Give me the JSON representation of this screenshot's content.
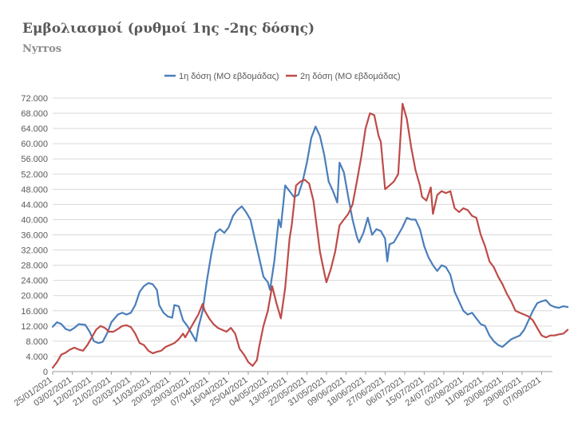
{
  "title": "Εμβολιασμοί (ρυθμοί 1ης -2ης δόσης)",
  "subtitle": "Nyrros",
  "chart_data": {
    "type": "line",
    "title": "Εμβολιασμοί (ρυθμοί 1ης -2ης δόσης)",
    "subtitle": "Nyrros",
    "xlabel": "",
    "ylabel": "",
    "ylim": [
      0,
      72000
    ],
    "yticks": [
      0,
      4000,
      8000,
      12000,
      16000,
      20000,
      24000,
      28000,
      32000,
      36000,
      40000,
      44000,
      48000,
      52000,
      56000,
      60000,
      64000,
      68000,
      72000
    ],
    "ytick_labels": [
      "0",
      "4.000",
      "8.000",
      "12.000",
      "16.000",
      "20.000",
      "24.000",
      "28.000",
      "32.000",
      "36.000",
      "40.000",
      "44.000",
      "48.000",
      "52.000",
      "56.000",
      "60.000",
      "64.000",
      "68.000",
      "72.000"
    ],
    "grid": true,
    "legend_position": "top",
    "x_start": "2021-01-25",
    "x_end": "2021-09-12",
    "x_tick_labels": [
      "25/01/2021",
      "03/02/2021",
      "12/02/2021",
      "21/02/2021",
      "02/03/2021",
      "11/03/2021",
      "20/03/2021",
      "29/03/2021",
      "07/04/2021",
      "16/04/2021",
      "25/04/2021",
      "04/05/2021",
      "13/05/2021",
      "22/05/2021",
      "31/05/2021",
      "09/06/2021",
      "18/06/2021",
      "27/06/2021",
      "06/07/2021",
      "15/07/2021",
      "24/07/2021",
      "02/08/2021",
      "11/08/2021",
      "20/08/2021",
      "29/08/2021",
      "07/09/2021"
    ],
    "series": [
      {
        "name": "1η δόση (ΜΟ εβδομάδας)",
        "color": "#4a7ebb",
        "points": [
          [
            "2021-01-25",
            11800
          ],
          [
            "2021-01-27",
            13000
          ],
          [
            "2021-01-29",
            12500
          ],
          [
            "2021-01-31",
            11200
          ],
          [
            "2021-02-02",
            10800
          ],
          [
            "2021-02-04",
            11500
          ],
          [
            "2021-02-06",
            12500
          ],
          [
            "2021-02-09",
            12300
          ],
          [
            "2021-02-11",
            10500
          ],
          [
            "2021-02-13",
            8000
          ],
          [
            "2021-02-15",
            7500
          ],
          [
            "2021-02-17",
            7800
          ],
          [
            "2021-02-19",
            10000
          ],
          [
            "2021-02-21",
            13000
          ],
          [
            "2021-02-24",
            15000
          ],
          [
            "2021-02-26",
            15500
          ],
          [
            "2021-02-28",
            15000
          ],
          [
            "2021-03-02",
            15500
          ],
          [
            "2021-03-04",
            17500
          ],
          [
            "2021-03-06",
            21000
          ],
          [
            "2021-03-08",
            22500
          ],
          [
            "2021-03-10",
            23300
          ],
          [
            "2021-03-12",
            23000
          ],
          [
            "2021-03-14",
            21500
          ],
          [
            "2021-03-15",
            17500
          ],
          [
            "2021-03-17",
            15500
          ],
          [
            "2021-03-19",
            14500
          ],
          [
            "2021-03-21",
            14200
          ],
          [
            "2021-03-22",
            17500
          ],
          [
            "2021-03-24",
            17200
          ],
          [
            "2021-03-26",
            13500
          ],
          [
            "2021-03-28",
            12000
          ],
          [
            "2021-03-30",
            10000
          ],
          [
            "2021-04-01",
            8000
          ],
          [
            "2021-04-02",
            11500
          ],
          [
            "2021-04-04",
            16000
          ],
          [
            "2021-04-06",
            24000
          ],
          [
            "2021-04-08",
            31000
          ],
          [
            "2021-04-10",
            36500
          ],
          [
            "2021-04-12",
            37500
          ],
          [
            "2021-04-14",
            36500
          ],
          [
            "2021-04-16",
            38000
          ],
          [
            "2021-04-18",
            41000
          ],
          [
            "2021-04-20",
            42500
          ],
          [
            "2021-04-22",
            43500
          ],
          [
            "2021-04-24",
            42000
          ],
          [
            "2021-04-26",
            40000
          ],
          [
            "2021-04-28",
            35000
          ],
          [
            "2021-04-30",
            30000
          ],
          [
            "2021-05-02",
            25000
          ],
          [
            "2021-05-04",
            23500
          ],
          [
            "2021-05-05",
            21500
          ],
          [
            "2021-05-07",
            29000
          ],
          [
            "2021-05-09",
            40000
          ],
          [
            "2021-05-10",
            38000
          ],
          [
            "2021-05-12",
            49000
          ],
          [
            "2021-05-14",
            47500
          ],
          [
            "2021-05-16",
            46000
          ],
          [
            "2021-05-18",
            46500
          ],
          [
            "2021-05-20",
            50000
          ],
          [
            "2021-05-22",
            55000
          ],
          [
            "2021-05-24",
            61500
          ],
          [
            "2021-05-26",
            64500
          ],
          [
            "2021-05-28",
            62000
          ],
          [
            "2021-05-30",
            57000
          ],
          [
            "2021-06-01",
            50000
          ],
          [
            "2021-06-03",
            47500
          ],
          [
            "2021-06-05",
            44500
          ],
          [
            "2021-06-06",
            55000
          ],
          [
            "2021-06-08",
            52500
          ],
          [
            "2021-06-10",
            46000
          ],
          [
            "2021-06-12",
            40000
          ],
          [
            "2021-06-14",
            35500
          ],
          [
            "2021-06-15",
            34000
          ],
          [
            "2021-06-17",
            36500
          ],
          [
            "2021-06-19",
            40500
          ],
          [
            "2021-06-21",
            36000
          ],
          [
            "2021-06-23",
            37500
          ],
          [
            "2021-06-25",
            37000
          ],
          [
            "2021-06-27",
            35000
          ],
          [
            "2021-06-28",
            29000
          ],
          [
            "2021-06-29",
            33500
          ],
          [
            "2021-07-01",
            34000
          ],
          [
            "2021-07-03",
            36000
          ],
          [
            "2021-07-05",
            38000
          ],
          [
            "2021-07-07",
            40500
          ],
          [
            "2021-07-09",
            40000
          ],
          [
            "2021-07-11",
            40000
          ],
          [
            "2021-07-13",
            37500
          ],
          [
            "2021-07-15",
            33000
          ],
          [
            "2021-07-17",
            30000
          ],
          [
            "2021-07-19",
            28000
          ],
          [
            "2021-07-21",
            26500
          ],
          [
            "2021-07-23",
            28000
          ],
          [
            "2021-07-25",
            27500
          ],
          [
            "2021-07-27",
            25500
          ],
          [
            "2021-07-29",
            21000
          ],
          [
            "2021-07-31",
            18500
          ],
          [
            "2021-08-02",
            16000
          ],
          [
            "2021-08-04",
            15000
          ],
          [
            "2021-08-06",
            15500
          ],
          [
            "2021-08-08",
            14000
          ],
          [
            "2021-08-10",
            12500
          ],
          [
            "2021-08-12",
            12000
          ],
          [
            "2021-08-14",
            9500
          ],
          [
            "2021-08-16",
            8000
          ],
          [
            "2021-08-18",
            7000
          ],
          [
            "2021-08-20",
            6500
          ],
          [
            "2021-08-22",
            7500
          ],
          [
            "2021-08-24",
            8500
          ],
          [
            "2021-08-26",
            9000
          ],
          [
            "2021-08-28",
            9500
          ],
          [
            "2021-08-30",
            11000
          ],
          [
            "2021-09-01",
            13500
          ],
          [
            "2021-09-03",
            16000
          ],
          [
            "2021-09-05",
            18000
          ],
          [
            "2021-09-07",
            18500
          ],
          [
            "2021-09-09",
            18800
          ],
          [
            "2021-09-11",
            17500
          ],
          [
            "2021-09-13",
            17000
          ],
          [
            "2021-09-15",
            16800
          ],
          [
            "2021-09-17",
            17200
          ],
          [
            "2021-09-19",
            17000
          ]
        ]
      },
      {
        "name": "2η δόση (ΜΟ εβδομάδας)",
        "color": "#be4b48",
        "points": [
          [
            "2021-01-25",
            1000
          ],
          [
            "2021-01-27",
            2500
          ],
          [
            "2021-01-29",
            4500
          ],
          [
            "2021-01-31",
            5000
          ],
          [
            "2021-02-02",
            5800
          ],
          [
            "2021-02-04",
            6300
          ],
          [
            "2021-02-06",
            5800
          ],
          [
            "2021-02-08",
            5500
          ],
          [
            "2021-02-10",
            7000
          ],
          [
            "2021-02-12",
            9000
          ],
          [
            "2021-02-14",
            11000
          ],
          [
            "2021-02-16",
            12000
          ],
          [
            "2021-02-18",
            11500
          ],
          [
            "2021-02-20",
            10500
          ],
          [
            "2021-02-22",
            10500
          ],
          [
            "2021-02-24",
            11200
          ],
          [
            "2021-02-26",
            12000
          ],
          [
            "2021-02-28",
            12200
          ],
          [
            "2021-03-02",
            11700
          ],
          [
            "2021-03-04",
            10000
          ],
          [
            "2021-03-06",
            7500
          ],
          [
            "2021-03-08",
            7000
          ],
          [
            "2021-03-10",
            5500
          ],
          [
            "2021-03-12",
            4800
          ],
          [
            "2021-03-14",
            5200
          ],
          [
            "2021-03-16",
            5500
          ],
          [
            "2021-03-18",
            6500
          ],
          [
            "2021-03-20",
            7000
          ],
          [
            "2021-03-22",
            7500
          ],
          [
            "2021-03-24",
            8500
          ],
          [
            "2021-03-26",
            10000
          ],
          [
            "2021-03-27",
            9000
          ],
          [
            "2021-03-29",
            11000
          ],
          [
            "2021-03-31",
            13000
          ],
          [
            "2021-04-02",
            15000
          ],
          [
            "2021-04-04",
            17800
          ],
          [
            "2021-04-05",
            16000
          ],
          [
            "2021-04-07",
            14000
          ],
          [
            "2021-04-09",
            12500
          ],
          [
            "2021-04-11",
            11500
          ],
          [
            "2021-04-13",
            11000
          ],
          [
            "2021-04-15",
            10500
          ],
          [
            "2021-04-17",
            11500
          ],
          [
            "2021-04-19",
            10000
          ],
          [
            "2021-04-21",
            6000
          ],
          [
            "2021-04-23",
            4500
          ],
          [
            "2021-04-25",
            2500
          ],
          [
            "2021-04-27",
            1500
          ],
          [
            "2021-04-29",
            3000
          ],
          [
            "2021-04-30",
            6500
          ],
          [
            "2021-05-02",
            12000
          ],
          [
            "2021-05-04",
            16000
          ],
          [
            "2021-05-06",
            22500
          ],
          [
            "2021-05-08",
            18000
          ],
          [
            "2021-05-10",
            14000
          ],
          [
            "2021-05-12",
            22000
          ],
          [
            "2021-05-14",
            35000
          ],
          [
            "2021-05-15",
            38500
          ],
          [
            "2021-05-17",
            49000
          ],
          [
            "2021-05-19",
            50000
          ],
          [
            "2021-05-21",
            50500
          ],
          [
            "2021-05-23",
            49500
          ],
          [
            "2021-05-25",
            45000
          ],
          [
            "2021-05-27",
            36000
          ],
          [
            "2021-05-28",
            31500
          ],
          [
            "2021-05-30",
            26000
          ],
          [
            "2021-05-31",
            23500
          ],
          [
            "2021-06-02",
            27000
          ],
          [
            "2021-06-04",
            31500
          ],
          [
            "2021-06-06",
            38500
          ],
          [
            "2021-06-08",
            40000
          ],
          [
            "2021-06-10",
            41500
          ],
          [
            "2021-06-12",
            44000
          ],
          [
            "2021-06-14",
            50000
          ],
          [
            "2021-06-16",
            56500
          ],
          [
            "2021-06-18",
            64000
          ],
          [
            "2021-06-20",
            68000
          ],
          [
            "2021-06-22",
            67500
          ],
          [
            "2021-06-24",
            62000
          ],
          [
            "2021-06-25",
            60500
          ],
          [
            "2021-06-27",
            48000
          ],
          [
            "2021-06-29",
            49000
          ],
          [
            "2021-07-01",
            50000
          ],
          [
            "2021-07-03",
            52000
          ],
          [
            "2021-07-05",
            70500
          ],
          [
            "2021-07-07",
            66500
          ],
          [
            "2021-07-09",
            59000
          ],
          [
            "2021-07-11",
            53000
          ],
          [
            "2021-07-13",
            49000
          ],
          [
            "2021-07-14",
            46000
          ],
          [
            "2021-07-16",
            45000
          ],
          [
            "2021-07-18",
            48500
          ],
          [
            "2021-07-19",
            41500
          ],
          [
            "2021-07-21",
            46500
          ],
          [
            "2021-07-23",
            47500
          ],
          [
            "2021-07-25",
            47000
          ],
          [
            "2021-07-27",
            47500
          ],
          [
            "2021-07-29",
            43000
          ],
          [
            "2021-07-31",
            42000
          ],
          [
            "2021-08-02",
            43000
          ],
          [
            "2021-08-04",
            42500
          ],
          [
            "2021-08-06",
            41000
          ],
          [
            "2021-08-08",
            40500
          ],
          [
            "2021-08-10",
            36000
          ],
          [
            "2021-08-12",
            33000
          ],
          [
            "2021-08-14",
            29000
          ],
          [
            "2021-08-16",
            27500
          ],
          [
            "2021-08-18",
            25000
          ],
          [
            "2021-08-20",
            23000
          ],
          [
            "2021-08-22",
            20500
          ],
          [
            "2021-08-24",
            18500
          ],
          [
            "2021-08-26",
            16000
          ],
          [
            "2021-08-28",
            15500
          ],
          [
            "2021-08-30",
            15000
          ],
          [
            "2021-09-01",
            14500
          ],
          [
            "2021-09-03",
            13500
          ],
          [
            "2021-09-05",
            11500
          ],
          [
            "2021-09-07",
            9500
          ],
          [
            "2021-09-09",
            9000
          ],
          [
            "2021-09-11",
            9500
          ],
          [
            "2021-09-13",
            9500
          ],
          [
            "2021-09-15",
            9800
          ],
          [
            "2021-09-17",
            10000
          ],
          [
            "2021-09-19",
            11000
          ]
        ]
      }
    ]
  }
}
